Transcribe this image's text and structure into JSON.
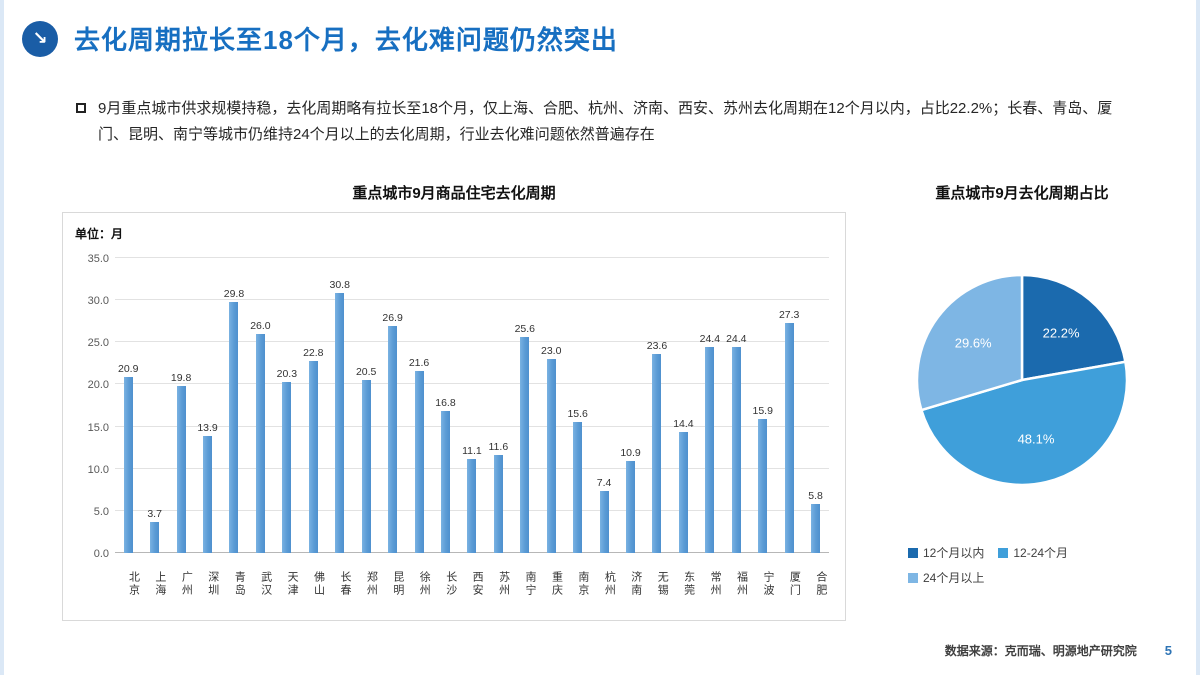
{
  "slide": {
    "title": "去化周期拉长至18个月，去化难问题仍然突出",
    "bullet": "9月重点城市供求规模持稳，去化周期略有拉长至18个月，仅上海、合肥、杭州、济南、西安、苏州去化周期在12个月以内，占比22.2%；长春、青岛、厦门、昆明、南宁等城市仍维持24个月以上的去化周期，行业去化难问题依然普遍存在",
    "source": "数据来源：克而瑞、明源地产研究院",
    "page_number": "5"
  },
  "colors": {
    "title_blue": "#176fc1",
    "icon_circle": "#1a5da6",
    "bar_blue": "#5b9bd5"
  },
  "chart_data": [
    {
      "type": "bar",
      "title": "重点城市9月商品住宅去化周期",
      "unit_label": "单位：月",
      "categories": [
        "北京",
        "上海",
        "广州",
        "深圳",
        "青岛",
        "武汉",
        "天津",
        "佛山",
        "长春",
        "郑州",
        "昆明",
        "徐州",
        "长沙",
        "西安",
        "苏州",
        "南宁",
        "重庆",
        "南京",
        "杭州",
        "济南",
        "无锡",
        "东莞",
        "常州",
        "福州",
        "宁波",
        "厦门",
        "合肥"
      ],
      "values": [
        20.9,
        3.7,
        19.8,
        13.9,
        29.8,
        26.0,
        20.3,
        22.8,
        30.8,
        20.5,
        26.9,
        21.6,
        16.8,
        11.1,
        11.6,
        25.6,
        23.0,
        15.6,
        7.4,
        10.9,
        23.6,
        14.4,
        24.4,
        24.4,
        15.9,
        27.3,
        5.8
      ],
      "xlabel": "",
      "ylabel": "单位：月",
      "ylim": [
        0,
        35
      ],
      "ytick_step": 5,
      "grid": true,
      "bar_color": "#5b9bd5"
    },
    {
      "type": "pie",
      "title": "重点城市9月去化周期占比",
      "legend_position": "bottom",
      "slices": [
        {
          "label": "12个月以内",
          "value": 22.2,
          "color": "#1b6aae"
        },
        {
          "label": "12-24个月",
          "value": 48.1,
          "color": "#3f9fda"
        },
        {
          "label": "24个月以上",
          "value": 29.6,
          "color": "#7eb6e4"
        }
      ]
    }
  ]
}
